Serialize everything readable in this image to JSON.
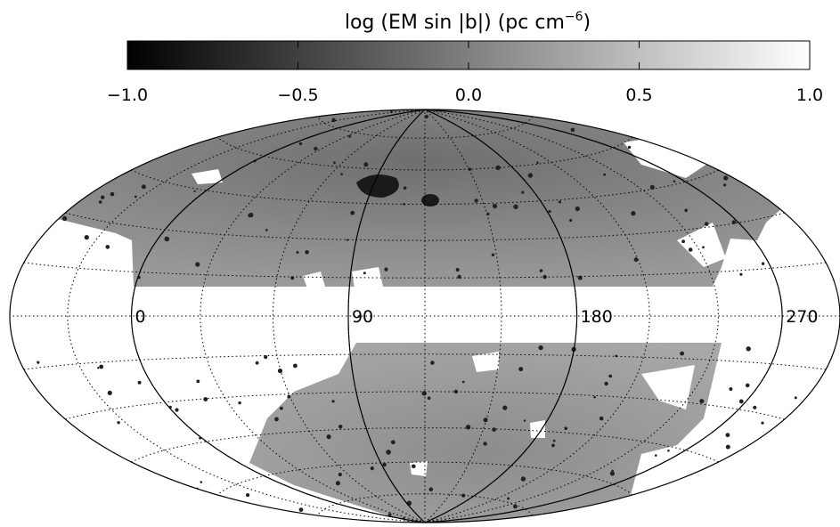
{
  "colorbar": {
    "title": "log (EM sin |b|) (pc cm",
    "title_superscript": "−6",
    "title_end": ")",
    "range": [
      -1,
      1
    ],
    "ticks": [
      {
        "value": -1,
        "label": "−1.0"
      },
      {
        "value": -0.5,
        "label": "−0.5"
      },
      {
        "value": 0,
        "label": "0.0"
      },
      {
        "value": 0.5,
        "label": "0.5"
      },
      {
        "value": 1,
        "label": "1.0"
      }
    ]
  },
  "map": {
    "longitude_labels": [
      270,
      180,
      90,
      0
    ]
  }
}
